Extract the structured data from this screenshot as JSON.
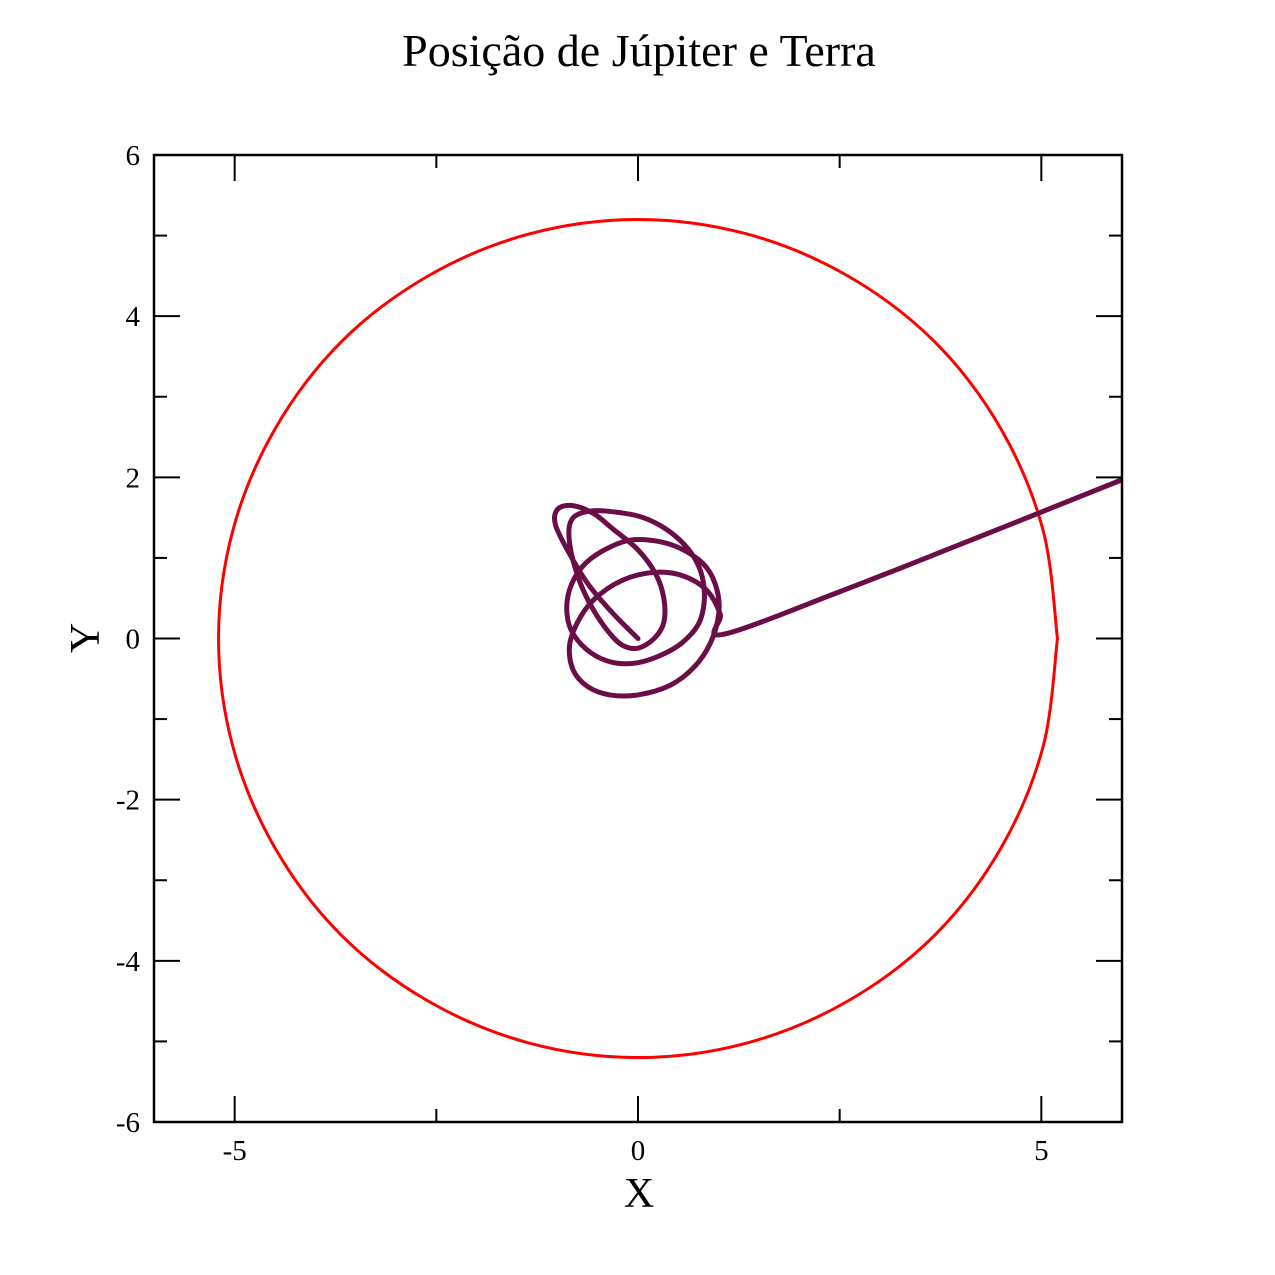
{
  "chart_data": {
    "type": "line",
    "title": "Posição de Júpiter e Terra",
    "xlabel": "X",
    "ylabel": "Y",
    "xlim": [
      -6,
      6
    ],
    "ylim": [
      -6,
      6
    ],
    "x_ticks_major": [
      -5,
      0,
      5
    ],
    "x_ticks_major_labels": [
      "-5",
      "0",
      "5"
    ],
    "x_ticks_minor": [
      -2.5,
      2.5
    ],
    "y_ticks_major": [
      -6,
      -4,
      -2,
      0,
      2,
      4,
      6
    ],
    "y_ticks_major_labels": [
      "-6",
      "-4",
      "-2",
      "0",
      "2",
      "4",
      "6"
    ],
    "y_ticks_minor": [
      -5,
      -3,
      -1,
      1,
      3,
      5
    ],
    "grid": false,
    "legend": "none",
    "series": [
      {
        "color": "#ff0000",
        "x": [
          5.2,
          5.02,
          4.5,
          3.68,
          2.6,
          1.35,
          0.0,
          -1.35,
          -2.6,
          -3.68,
          -4.5,
          -5.02,
          -5.2,
          -5.02,
          -4.5,
          -3.68,
          -2.6,
          -1.35,
          0.0,
          1.35,
          2.6,
          3.68,
          4.5,
          5.02,
          5.2
        ],
        "y": [
          0.0,
          1.35,
          2.6,
          3.68,
          4.5,
          5.02,
          5.2,
          5.02,
          4.5,
          3.68,
          2.6,
          1.35,
          0.0,
          -1.35,
          -2.6,
          -3.68,
          -4.5,
          -5.02,
          -5.2,
          -5.02,
          -4.5,
          -3.68,
          -2.6,
          -1.35,
          0.0
        ]
      },
      {
        "color": "#6b0d47",
        "x": [
          0.0,
          -0.3,
          -0.6,
          -0.82,
          -1.02,
          -1.0,
          -0.82,
          -0.55,
          -0.3,
          0.0,
          0.22,
          0.32,
          0.32,
          0.2,
          0.0,
          -0.2,
          -0.38,
          -0.55,
          -0.7,
          -0.8,
          -0.85,
          -0.85,
          -0.78,
          -0.6,
          -0.38,
          0.0,
          0.28,
          0.52,
          0.7,
          0.8,
          0.82,
          0.75,
          0.55,
          0.3,
          0.0,
          -0.3,
          -0.58,
          -0.8,
          -0.88,
          -0.85,
          -0.7,
          -0.45,
          -0.1,
          0.28,
          0.6,
          0.85,
          0.98,
          1.0,
          0.9,
          0.7,
          0.4,
          0.0,
          -0.35,
          -0.62,
          -0.8,
          -0.85,
          -0.75,
          -0.55,
          -0.2,
          0.2,
          0.55,
          0.85,
          1.02,
          1.05,
          2.5,
          4.0,
          6.0
        ],
        "y": [
          0.0,
          0.3,
          0.65,
          1.0,
          1.4,
          1.6,
          1.65,
          1.55,
          1.35,
          1.1,
          0.8,
          0.5,
          0.2,
          0.0,
          -0.12,
          -0.08,
          0.1,
          0.35,
          0.65,
          0.95,
          1.2,
          1.4,
          1.52,
          1.58,
          1.58,
          1.52,
          1.4,
          1.22,
          1.0,
          0.75,
          0.45,
          0.18,
          -0.05,
          -0.2,
          -0.3,
          -0.3,
          -0.18,
          0.05,
          0.3,
          0.6,
          0.88,
          1.08,
          1.22,
          1.2,
          1.08,
          0.88,
          0.6,
          0.3,
          -0.05,
          -0.35,
          -0.58,
          -0.7,
          -0.7,
          -0.6,
          -0.4,
          -0.1,
          0.2,
          0.48,
          0.72,
          0.82,
          0.78,
          0.6,
          0.3,
          0.05,
          0.58,
          1.17,
          1.97
        ]
      }
    ]
  }
}
